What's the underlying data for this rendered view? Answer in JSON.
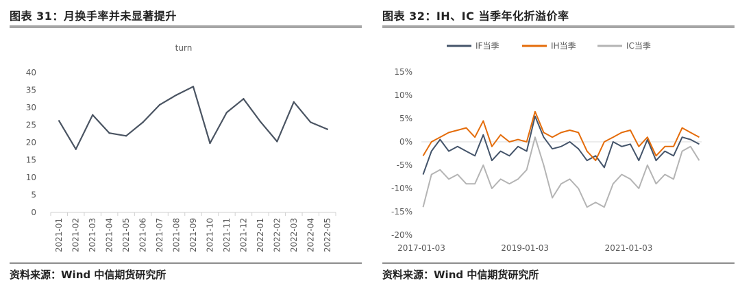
{
  "left": {
    "title": "图表 31：月换手率并未显著提升",
    "source": "资料来源：Wind  中信期货研究所"
  },
  "right": {
    "title": "图表 32：IH、IC 当季年化折溢价率",
    "source": "资料来源：Wind  中信期货研究所"
  },
  "colors": {
    "if": "#44546a",
    "ih": "#e46c0a",
    "ic": "#b4b4b4",
    "line": "#4a5462"
  },
  "chart_data": [
    {
      "type": "line",
      "title": "turn",
      "xlabel": "",
      "ylabel": "",
      "ylim": [
        0,
        40
      ],
      "yticks": [
        0,
        5,
        10,
        15,
        20,
        25,
        30,
        35,
        40
      ],
      "grid": false,
      "categories": [
        "2021-01",
        "2021-02",
        "2021-03",
        "2021-04",
        "2021-05",
        "2021-06",
        "2021-07",
        "2021-08",
        "2021-09",
        "2021-10",
        "2021-11",
        "2021-12",
        "2022-01",
        "2022-02",
        "2022-03",
        "2022-04",
        "2022-05"
      ],
      "series": [
        {
          "values": [
            26.2,
            18.1,
            27.9,
            22.7,
            21.9,
            25.8,
            30.8,
            33.6,
            36.0,
            19.8,
            28.6,
            32.5,
            26.0,
            20.3,
            31.6,
            25.8,
            23.8
          ]
        }
      ]
    },
    {
      "type": "line",
      "title": "",
      "xlabel": "",
      "ylabel": "",
      "ylim": [
        -20,
        15
      ],
      "yticks": [
        "15%",
        "10%",
        "5%",
        "0%",
        "-5%",
        "-10%",
        "-15%",
        "-20%"
      ],
      "xticks": [
        "2017-01-03",
        "2019-01-03",
        "2021-01-03"
      ],
      "xrange": [
        "2017-01-03",
        "2022-06-01"
      ],
      "legend": "top",
      "grid": false,
      "series": [
        {
          "name": "IF当季",
          "sample": "every two months, %",
          "x": [
            "2017-01",
            "2017-03",
            "2017-05",
            "2017-07",
            "2017-09",
            "2017-11",
            "2018-01",
            "2018-03",
            "2018-05",
            "2018-07",
            "2018-09",
            "2018-11",
            "2019-01",
            "2019-03",
            "2019-05",
            "2019-07",
            "2019-09",
            "2019-11",
            "2020-01",
            "2020-03",
            "2020-05",
            "2020-07",
            "2020-09",
            "2020-11",
            "2021-01",
            "2021-03",
            "2021-05",
            "2021-07",
            "2021-09",
            "2021-11",
            "2022-01",
            "2022-03",
            "2022-05"
          ],
          "values": [
            -7,
            -2,
            0.5,
            -2,
            -1,
            -2,
            -3,
            1.5,
            -4,
            -2,
            -3,
            -1,
            -2,
            5.5,
            1,
            -1.5,
            -1,
            0,
            -1.5,
            -4,
            -3,
            -5.5,
            0,
            -1,
            -0.5,
            -4,
            0.5,
            -4,
            -2,
            -3,
            1,
            0.5,
            -0.5
          ]
        },
        {
          "name": "IH当季",
          "x": [
            "2017-01",
            "2017-03",
            "2017-05",
            "2017-07",
            "2017-09",
            "2017-11",
            "2018-01",
            "2018-03",
            "2018-05",
            "2018-07",
            "2018-09",
            "2018-11",
            "2019-01",
            "2019-03",
            "2019-05",
            "2019-07",
            "2019-09",
            "2019-11",
            "2020-01",
            "2020-03",
            "2020-05",
            "2020-07",
            "2020-09",
            "2020-11",
            "2021-01",
            "2021-03",
            "2021-05",
            "2021-07",
            "2021-09",
            "2021-11",
            "2022-01",
            "2022-03",
            "2022-05"
          ],
          "values": [
            -3,
            0,
            1,
            2,
            2.5,
            3,
            1,
            4.5,
            -1,
            1.5,
            0,
            0.5,
            0,
            6.5,
            2,
            1,
            2,
            2.5,
            2,
            -2,
            -4,
            0,
            1,
            2,
            2.5,
            -1,
            1,
            -3,
            -1,
            -1,
            3,
            2,
            1
          ]
        },
        {
          "name": "IC当季",
          "x": [
            "2017-01",
            "2017-03",
            "2017-05",
            "2017-07",
            "2017-09",
            "2017-11",
            "2018-01",
            "2018-03",
            "2018-05",
            "2018-07",
            "2018-09",
            "2018-11",
            "2019-01",
            "2019-03",
            "2019-05",
            "2019-07",
            "2019-09",
            "2019-11",
            "2020-01",
            "2020-03",
            "2020-05",
            "2020-07",
            "2020-09",
            "2020-11",
            "2021-01",
            "2021-03",
            "2021-05",
            "2021-07",
            "2021-09",
            "2021-11",
            "2022-01",
            "2022-03",
            "2022-05"
          ],
          "values": [
            -14,
            -7,
            -6,
            -8,
            -7,
            -9,
            -9,
            -5,
            -10,
            -8,
            -9,
            -8,
            -6,
            1,
            -5,
            -12,
            -9,
            -8,
            -10,
            -14,
            -13,
            -14,
            -9,
            -7,
            -8,
            -10,
            -5,
            -9,
            -7,
            -8,
            -2,
            -1,
            -4
          ]
        }
      ]
    }
  ]
}
